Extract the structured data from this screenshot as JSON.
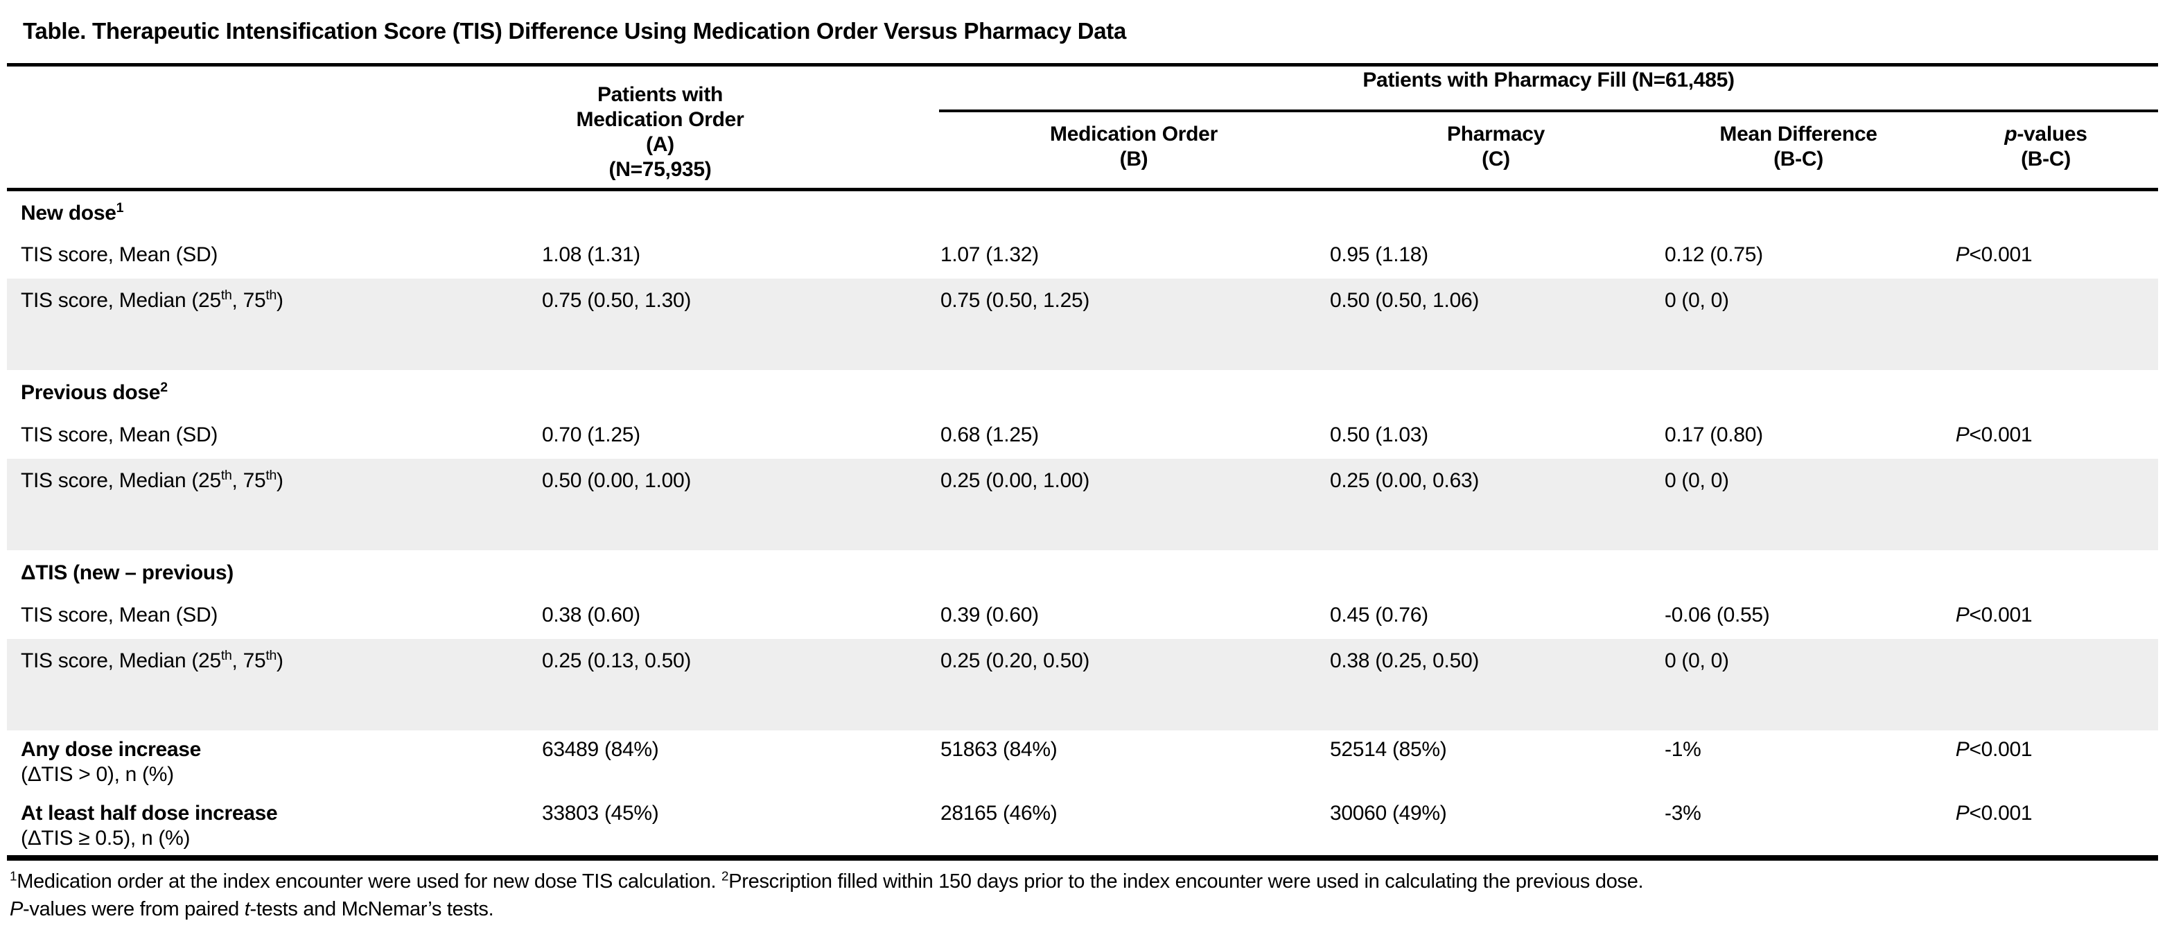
{
  "title": "Table. Therapeutic Intensification Score (TIS) Difference Using Medication Order Versus Pharmacy Data",
  "colors": {
    "text": "#000000",
    "row_shade": "#eeeeee",
    "rule": "#000000",
    "background": "#ffffff"
  },
  "header": {
    "col_a_lines": [
      "Patients with",
      "Medication Order",
      "(A)",
      "(N=75,935)"
    ],
    "pharmacy_group": "Patients with Pharmacy Fill (N=61,485)",
    "sub_columns": [
      {
        "line1": "Medication Order",
        "line2": "(B)"
      },
      {
        "line1": "Pharmacy",
        "line2": "(C)"
      },
      {
        "line1": "Mean Difference",
        "line2": "(B-C)"
      }
    ],
    "p_header": {
      "line1": [
        {
          "t": "p",
          "i": true
        },
        {
          "t": "-values"
        }
      ],
      "line2": "(B-C)"
    }
  },
  "rows": [
    {
      "kind": "section",
      "label": [
        {
          "t": "New dose"
        },
        {
          "t": "1",
          "sup": true
        }
      ]
    },
    {
      "kind": "mean",
      "label": [
        {
          "t": "TIS score, Mean (SD)"
        }
      ],
      "a": "1.08 (1.31)",
      "b": "1.07 (1.32)",
      "c": "0.95 (1.18)",
      "bc": "0.12 (0.75)",
      "p": [
        {
          "t": "P",
          "i": true
        },
        {
          "t": "<0.001"
        }
      ]
    },
    {
      "kind": "median",
      "label": [
        {
          "t": "TIS score, Median (25"
        },
        {
          "t": "th",
          "sup": true
        },
        {
          "t": ", 75"
        },
        {
          "t": "th",
          "sup": true
        },
        {
          "t": ")"
        }
      ],
      "a": "0.75 (0.50, 1.30)",
      "b": "0.75 (0.50, 1.25)",
      "c": "0.50 (0.50, 1.06)",
      "bc": "0 (0, 0)",
      "p": []
    },
    {
      "kind": "section",
      "label": [
        {
          "t": "Previous dose"
        },
        {
          "t": "2",
          "sup": true
        }
      ]
    },
    {
      "kind": "mean",
      "label": [
        {
          "t": "TIS score, Mean (SD)"
        }
      ],
      "a": "0.70 (1.25)",
      "b": "0.68 (1.25)",
      "c": "0.50 (1.03)",
      "bc": "0.17 (0.80)",
      "p": [
        {
          "t": "P",
          "i": true
        },
        {
          "t": "<0.001"
        }
      ]
    },
    {
      "kind": "median",
      "label": [
        {
          "t": "TIS score, Median (25"
        },
        {
          "t": "th",
          "sup": true
        },
        {
          "t": ", 75"
        },
        {
          "t": "th",
          "sup": true
        },
        {
          "t": ")"
        }
      ],
      "a": "0.50 (0.00, 1.00)",
      "b": "0.25 (0.00, 1.00)",
      "c": "0.25 (0.00, 0.63)",
      "bc": "0 (0, 0)",
      "p": []
    },
    {
      "kind": "section",
      "label": [
        {
          "t": "ΔTIS (new – previous)"
        }
      ]
    },
    {
      "kind": "mean",
      "label": [
        {
          "t": "TIS score, Mean (SD)"
        }
      ],
      "a": "0.38 (0.60)",
      "b": "0.39 (0.60)",
      "c": "0.45 (0.76)",
      "bc": "-0.06 (0.55)",
      "p": [
        {
          "t": "P",
          "i": true
        },
        {
          "t": "<0.001"
        }
      ]
    },
    {
      "kind": "median",
      "label": [
        {
          "t": "TIS score, Median (25"
        },
        {
          "t": "th",
          "sup": true
        },
        {
          "t": ", 75"
        },
        {
          "t": "th",
          "sup": true
        },
        {
          "t": ")"
        }
      ],
      "a": "0.25 (0.13, 0.50)",
      "b": "0.25 (0.20, 0.50)",
      "c": "0.38 (0.25, 0.50)",
      "bc": "0 (0, 0)",
      "p": []
    },
    {
      "kind": "twoline",
      "label": [
        {
          "t": "Any dose increase"
        }
      ],
      "label2": [
        {
          "t": "(ΔTIS > 0), n (%)"
        }
      ],
      "a": "63489 (84%)",
      "b": "51863 (84%)",
      "c": "52514 (85%)",
      "bc": "-1%",
      "p": [
        {
          "t": "P",
          "i": true
        },
        {
          "t": "<0.001"
        }
      ]
    },
    {
      "kind": "twoline",
      "label": [
        {
          "t": "At least half dose increase"
        }
      ],
      "label2": [
        {
          "t": "(ΔTIS ≥ 0.5), n (%)"
        }
      ],
      "a": "33803 (45%)",
      "b": "28165 (46%)",
      "c": "30060 (49%)",
      "bc": "-3%",
      "p": [
        {
          "t": "P",
          "i": true
        },
        {
          "t": "<0.001"
        }
      ]
    }
  ],
  "footnotes": [
    [
      {
        "t": "1",
        "sup": true
      },
      {
        "t": "Medication order at the index encounter were used for new dose TIS calculation. "
      },
      {
        "t": "2",
        "sup": true
      },
      {
        "t": "Prescription filled within 150 days prior to the index encounter were used in calculating the previous dose."
      }
    ],
    [
      {
        "t": "P",
        "i": true
      },
      {
        "t": "-values were from paired "
      },
      {
        "t": "t",
        "i": true
      },
      {
        "t": "-tests and McNemar’s tests."
      }
    ]
  ]
}
